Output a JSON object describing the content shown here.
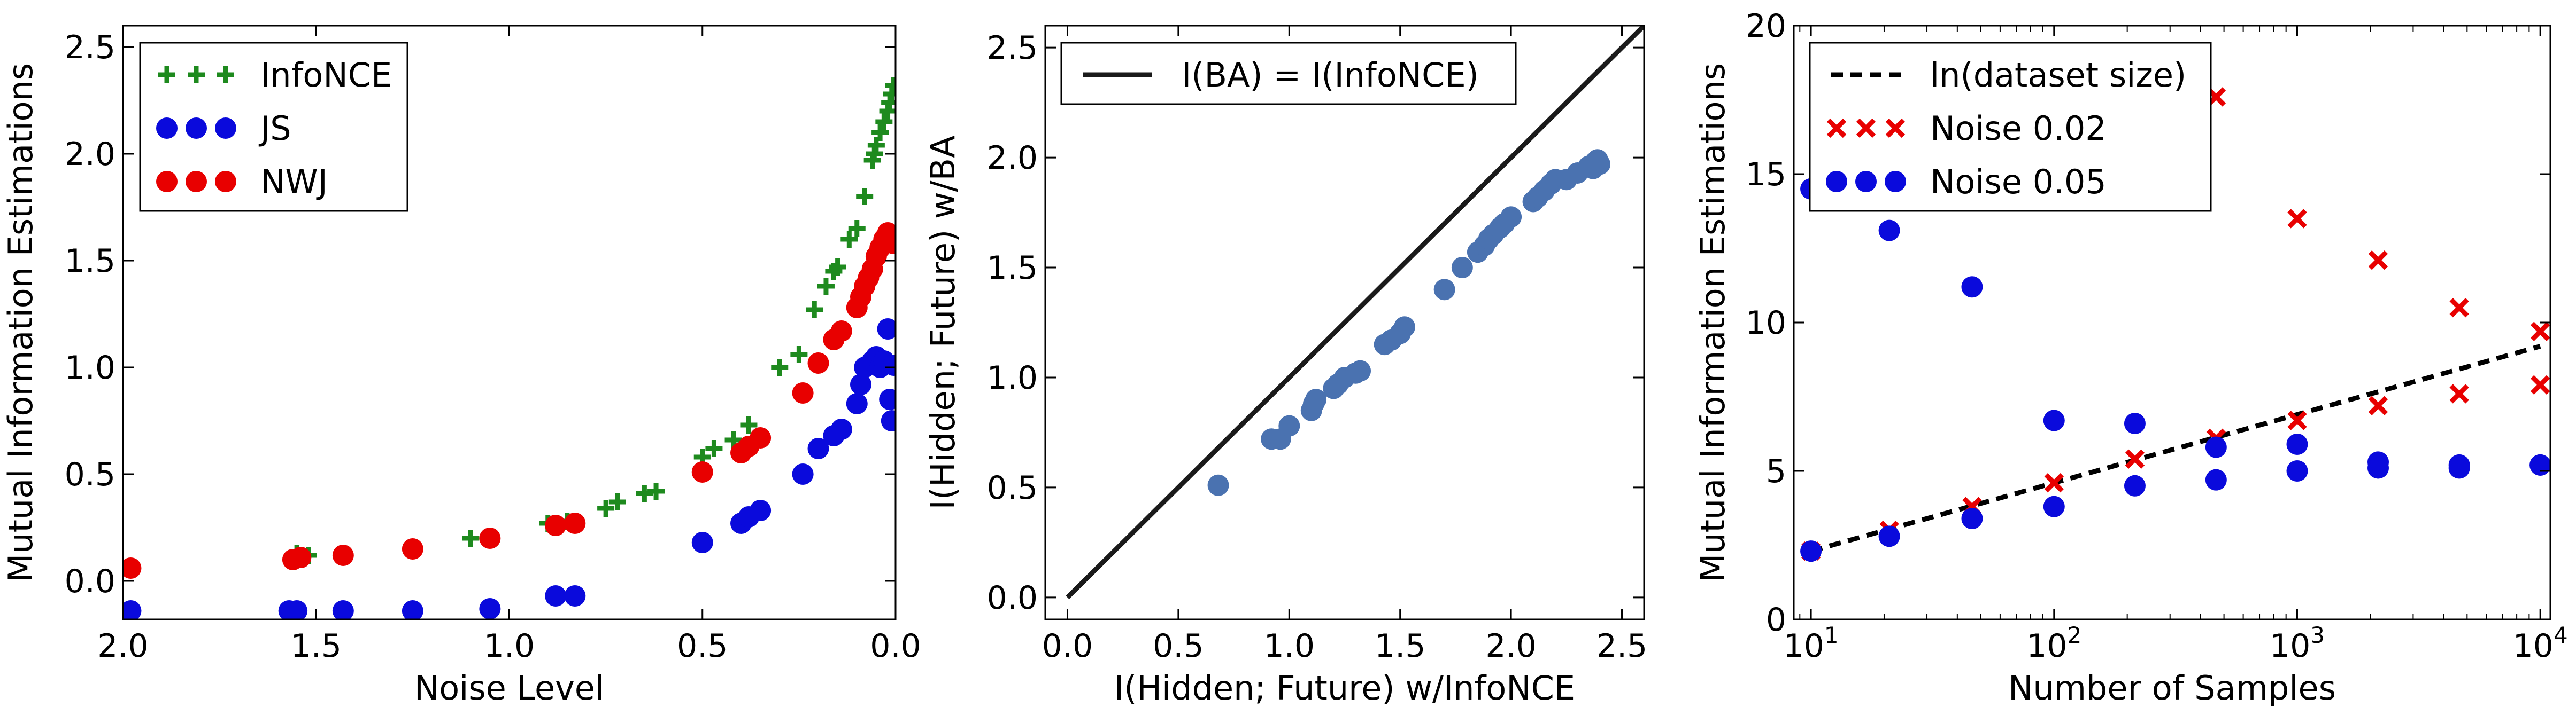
{
  "chart_data": [
    {
      "type": "scatter",
      "title": "",
      "xlabel": "Noise Level",
      "ylabel": "Mutual Information Estimations",
      "xlim": [
        2.0,
        0.0
      ],
      "ylim": [
        -0.18,
        2.6
      ],
      "x_reversed": true,
      "xticks": [
        "2.0",
        "1.5",
        "1.0",
        "0.5",
        "0.0"
      ],
      "yticks": [
        "0.0",
        "0.5",
        "1.0",
        "1.5",
        "2.0",
        "2.5"
      ],
      "legend_position": "top-left",
      "grid": false,
      "series": [
        {
          "name": "InfoNCE",
          "marker": "plus",
          "color": "#1e8a1e",
          "points": [
            [
              1.55,
              0.13
            ],
            [
              1.52,
              0.12
            ],
            [
              1.25,
              0.15
            ],
            [
              1.1,
              0.2
            ],
            [
              1.05,
              0.21
            ],
            [
              0.9,
              0.27
            ],
            [
              0.85,
              0.28
            ],
            [
              0.75,
              0.34
            ],
            [
              0.72,
              0.37
            ],
            [
              0.65,
              0.41
            ],
            [
              0.62,
              0.42
            ],
            [
              0.5,
              0.58
            ],
            [
              0.47,
              0.62
            ],
            [
              0.42,
              0.66
            ],
            [
              0.38,
              0.73
            ],
            [
              0.3,
              1.0
            ],
            [
              0.25,
              1.06
            ],
            [
              0.21,
              1.27
            ],
            [
              0.18,
              1.38
            ],
            [
              0.16,
              1.45
            ],
            [
              0.15,
              1.47
            ],
            [
              0.12,
              1.6
            ],
            [
              0.1,
              1.65
            ],
            [
              0.08,
              1.8
            ],
            [
              0.06,
              1.97
            ],
            [
              0.055,
              2.0
            ],
            [
              0.05,
              2.04
            ],
            [
              0.04,
              2.1
            ],
            [
              0.03,
              2.15
            ],
            [
              0.02,
              2.2
            ],
            [
              0.015,
              2.24
            ],
            [
              0.01,
              2.28
            ],
            [
              0.005,
              2.32
            ]
          ]
        },
        {
          "name": "JS",
          "marker": "circle",
          "color": "#0a0adc",
          "points": [
            [
              1.98,
              -0.14
            ],
            [
              1.57,
              -0.14
            ],
            [
              1.55,
              -0.14
            ],
            [
              1.43,
              -0.14
            ],
            [
              1.25,
              -0.14
            ],
            [
              1.05,
              -0.13
            ],
            [
              0.88,
              -0.07
            ],
            [
              0.83,
              -0.07
            ],
            [
              0.5,
              0.18
            ],
            [
              0.4,
              0.27
            ],
            [
              0.38,
              0.3
            ],
            [
              0.35,
              0.33
            ],
            [
              0.24,
              0.5
            ],
            [
              0.2,
              0.62
            ],
            [
              0.16,
              0.68
            ],
            [
              0.14,
              0.71
            ],
            [
              0.1,
              0.83
            ],
            [
              0.09,
              0.92
            ],
            [
              0.08,
              1.0
            ],
            [
              0.06,
              1.03
            ],
            [
              0.05,
              1.05
            ],
            [
              0.04,
              1.0
            ],
            [
              0.03,
              1.03
            ],
            [
              0.02,
              1.18
            ],
            [
              0.015,
              0.85
            ],
            [
              0.01,
              0.75
            ],
            [
              0.005,
              1.01
            ]
          ]
        },
        {
          "name": "NWJ",
          "marker": "circle",
          "color": "#e80000",
          "points": [
            [
              1.98,
              0.06
            ],
            [
              1.56,
              0.1
            ],
            [
              1.54,
              0.11
            ],
            [
              1.43,
              0.12
            ],
            [
              1.25,
              0.15
            ],
            [
              1.05,
              0.2
            ],
            [
              0.88,
              0.26
            ],
            [
              0.83,
              0.27
            ],
            [
              0.5,
              0.51
            ],
            [
              0.4,
              0.6
            ],
            [
              0.38,
              0.63
            ],
            [
              0.35,
              0.67
            ],
            [
              0.24,
              0.88
            ],
            [
              0.2,
              1.02
            ],
            [
              0.16,
              1.13
            ],
            [
              0.14,
              1.17
            ],
            [
              0.1,
              1.28
            ],
            [
              0.09,
              1.33
            ],
            [
              0.08,
              1.38
            ],
            [
              0.07,
              1.42
            ],
            [
              0.06,
              1.46
            ],
            [
              0.05,
              1.52
            ],
            [
              0.04,
              1.56
            ],
            [
              0.03,
              1.6
            ],
            [
              0.02,
              1.63
            ],
            [
              0.01,
              1.6
            ],
            [
              0.005,
              1.58
            ]
          ]
        }
      ]
    },
    {
      "type": "scatter",
      "title": "",
      "xlabel": "I(Hidden; Future) w/InfoNCE",
      "ylabel": "I(Hidden; Future) w/BA",
      "xlim": [
        -0.1,
        2.6
      ],
      "ylim": [
        -0.1,
        2.6
      ],
      "xticks": [
        "0.0",
        "0.5",
        "1.0",
        "1.5",
        "2.0",
        "2.5"
      ],
      "yticks": [
        "0.0",
        "0.5",
        "1.0",
        "1.5",
        "2.0",
        "2.5"
      ],
      "legend_position": "top-left",
      "grid": false,
      "reference_line": {
        "name": "I(BA) = I(InfoNCE)",
        "from": [
          0,
          0
        ],
        "to": [
          2.6,
          2.6
        ],
        "color": "#1a1a1a"
      },
      "series": [
        {
          "name": "",
          "marker": "circle",
          "color": "#4a72b0",
          "points": [
            [
              0.68,
              0.51
            ],
            [
              0.92,
              0.72
            ],
            [
              0.96,
              0.72
            ],
            [
              1.0,
              0.78
            ],
            [
              1.1,
              0.85
            ],
            [
              1.11,
              0.88
            ],
            [
              1.12,
              0.9
            ],
            [
              1.2,
              0.95
            ],
            [
              1.22,
              0.97
            ],
            [
              1.25,
              1.0
            ],
            [
              1.3,
              1.02
            ],
            [
              1.32,
              1.03
            ],
            [
              1.43,
              1.15
            ],
            [
              1.46,
              1.17
            ],
            [
              1.5,
              1.2
            ],
            [
              1.52,
              1.23
            ],
            [
              1.7,
              1.4
            ],
            [
              1.78,
              1.5
            ],
            [
              1.85,
              1.57
            ],
            [
              1.88,
              1.6
            ],
            [
              1.9,
              1.63
            ],
            [
              1.92,
              1.65
            ],
            [
              1.95,
              1.68
            ],
            [
              1.97,
              1.7
            ],
            [
              2.0,
              1.73
            ],
            [
              2.1,
              1.8
            ],
            [
              2.12,
              1.82
            ],
            [
              2.15,
              1.85
            ],
            [
              2.18,
              1.88
            ],
            [
              2.2,
              1.9
            ],
            [
              2.25,
              1.9
            ],
            [
              2.3,
              1.93
            ],
            [
              2.35,
              1.96
            ],
            [
              2.38,
              1.98
            ],
            [
              2.4,
              1.97
            ],
            [
              2.37,
              1.95
            ],
            [
              2.39,
              1.99
            ]
          ]
        }
      ]
    },
    {
      "type": "scatter",
      "title": "",
      "xlabel": "Number of Samples",
      "ylabel": "Mutual Information Estimations",
      "x_scale": "log",
      "xlim": [
        8.5,
        11000
      ],
      "ylim": [
        0,
        20
      ],
      "xticks": [
        "10",
        "100",
        "1000",
        "10000"
      ],
      "xtick_labels": [
        [
          "10",
          "1"
        ],
        [
          "10",
          "2"
        ],
        [
          "10",
          "3"
        ],
        [
          "10",
          "4"
        ]
      ],
      "yticks": [
        "0",
        "5",
        "10",
        "15",
        "20"
      ],
      "legend_position": "top-left",
      "grid": false,
      "series": [
        {
          "name": "ln(dataset size)",
          "marker": "dashed-line",
          "color": "#000000",
          "points": [
            [
              10,
              2.3
            ],
            [
              10000,
              9.2
            ]
          ]
        },
        {
          "name": "Noise 0.02",
          "marker": "x",
          "color": "#e80000",
          "points": [
            [
              21,
              3.0
            ],
            [
              46,
              3.8
            ],
            [
              100,
              4.6
            ],
            [
              215,
              5.4
            ],
            [
              464,
              6.1
            ],
            [
              464,
              17.6
            ],
            [
              1000,
              6.7
            ],
            [
              1000,
              13.5
            ],
            [
              2154,
              7.2
            ],
            [
              2154,
              12.1
            ],
            [
              4642,
              7.6
            ],
            [
              4642,
              10.5
            ],
            [
              10000,
              7.9
            ],
            [
              10000,
              9.7
            ],
            [
              10,
              2.3
            ]
          ]
        },
        {
          "name": "Noise 0.05",
          "marker": "circle",
          "color": "#0a0adc",
          "points": [
            [
              10,
              14.5
            ],
            [
              10,
              2.3
            ],
            [
              21,
              13.1
            ],
            [
              21,
              2.8
            ],
            [
              46,
              11.2
            ],
            [
              46,
              3.4
            ],
            [
              100,
              6.7
            ],
            [
              100,
              3.8
            ],
            [
              215,
              6.6
            ],
            [
              215,
              4.5
            ],
            [
              464,
              5.8
            ],
            [
              464,
              4.7
            ],
            [
              1000,
              5.9
            ],
            [
              1000,
              5.0
            ],
            [
              2154,
              5.3
            ],
            [
              2154,
              5.1
            ],
            [
              4642,
              5.2
            ],
            [
              4642,
              5.1
            ],
            [
              10000,
              5.2
            ],
            [
              10000,
              5.2
            ]
          ]
        }
      ]
    }
  ]
}
